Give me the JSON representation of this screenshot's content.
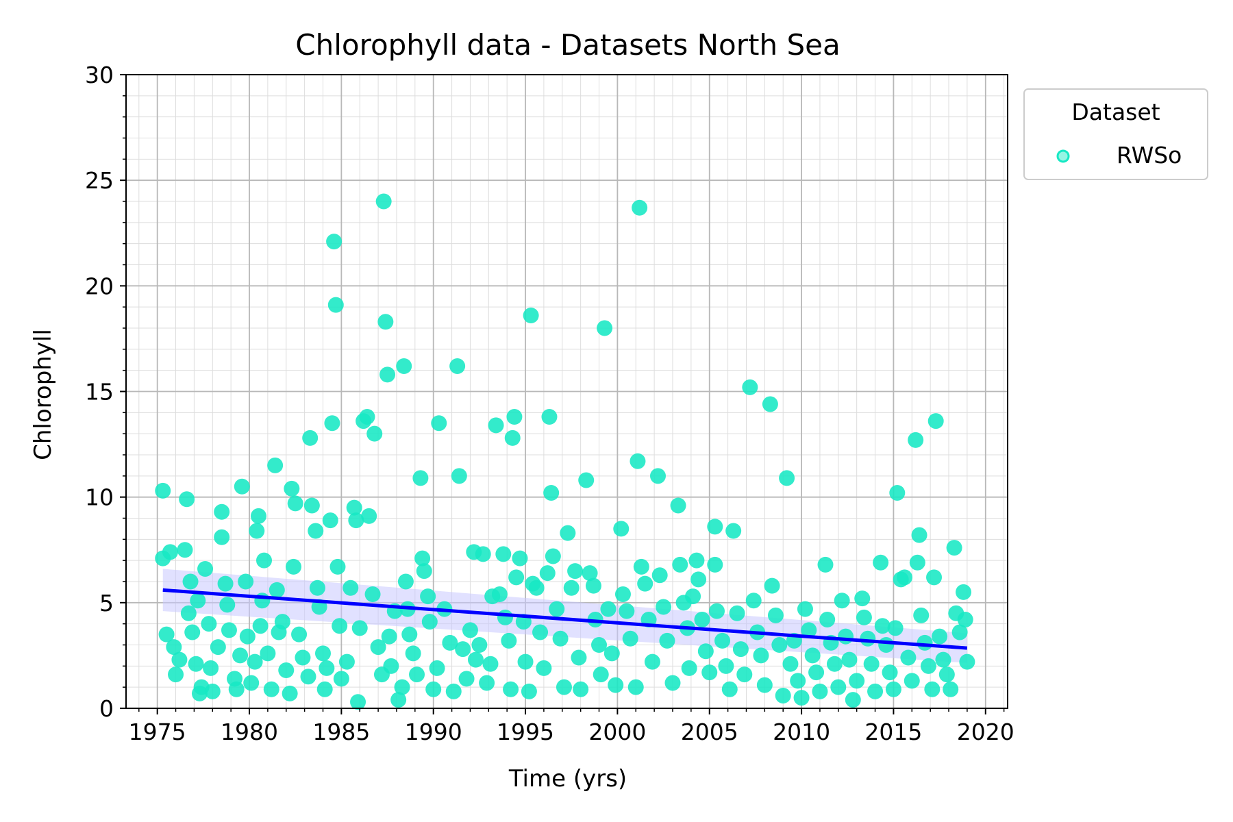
{
  "chart_data": {
    "type": "scatter",
    "title": "Chlorophyll data - Datasets North Sea",
    "xlabel": "Time (yrs)",
    "ylabel": "Chlorophyll",
    "xlim": [
      1973.3,
      2021.2
    ],
    "ylim": [
      0,
      30
    ],
    "x_ticks": [
      1975,
      1980,
      1985,
      1990,
      1995,
      2000,
      2005,
      2010,
      2015,
      2020
    ],
    "y_ticks": [
      0,
      5,
      10,
      15,
      20,
      25,
      30
    ],
    "grid": true,
    "legend": {
      "title": "Dataset",
      "placement": "outside top-right",
      "entries": [
        "RWSo"
      ]
    },
    "colors": {
      "points": "#17e8c4",
      "trend": "#0000ff",
      "band": "#c8c8ff"
    },
    "trend_line": {
      "x": [
        1975.3,
        2019.0
      ],
      "y": [
        5.6,
        2.85
      ]
    },
    "trend_band": {
      "x": [
        1975.3,
        2019.0
      ],
      "upper": [
        6.6,
        3.55
      ],
      "lower": [
        4.6,
        2.15
      ]
    },
    "series": [
      {
        "name": "RWSo",
        "points": [
          [
            1975.3,
            10.3
          ],
          [
            1975.3,
            7.1
          ],
          [
            1975.5,
            3.5
          ],
          [
            1975.7,
            7.4
          ],
          [
            1975.9,
            2.9
          ],
          [
            1976.0,
            1.6
          ],
          [
            1976.2,
            2.3
          ],
          [
            1976.5,
            7.5
          ],
          [
            1976.6,
            9.9
          ],
          [
            1976.7,
            4.5
          ],
          [
            1976.8,
            6.0
          ],
          [
            1976.9,
            3.6
          ],
          [
            1977.1,
            2.1
          ],
          [
            1977.2,
            5.1
          ],
          [
            1977.3,
            0.7
          ],
          [
            1977.4,
            1.0
          ],
          [
            1977.6,
            6.6
          ],
          [
            1977.8,
            4.0
          ],
          [
            1977.9,
            1.9
          ],
          [
            1978.0,
            0.8
          ],
          [
            1978.3,
            2.9
          ],
          [
            1978.5,
            9.3
          ],
          [
            1978.5,
            8.1
          ],
          [
            1978.7,
            5.9
          ],
          [
            1978.8,
            4.9
          ],
          [
            1978.9,
            3.7
          ],
          [
            1979.2,
            1.4
          ],
          [
            1979.3,
            0.9
          ],
          [
            1979.5,
            2.5
          ],
          [
            1979.6,
            10.5
          ],
          [
            1979.8,
            6.0
          ],
          [
            1979.9,
            3.4
          ],
          [
            1980.1,
            1.2
          ],
          [
            1980.3,
            2.2
          ],
          [
            1980.4,
            8.4
          ],
          [
            1980.5,
            9.1
          ],
          [
            1980.6,
            3.9
          ],
          [
            1980.7,
            5.1
          ],
          [
            1980.8,
            7.0
          ],
          [
            1981.0,
            2.6
          ],
          [
            1981.2,
            0.9
          ],
          [
            1981.4,
            11.5
          ],
          [
            1981.5,
            5.6
          ],
          [
            1981.6,
            3.6
          ],
          [
            1981.8,
            4.1
          ],
          [
            1982.0,
            1.8
          ],
          [
            1982.2,
            0.7
          ],
          [
            1982.3,
            10.4
          ],
          [
            1982.4,
            6.7
          ],
          [
            1982.5,
            9.7
          ],
          [
            1982.7,
            3.5
          ],
          [
            1982.9,
            2.4
          ],
          [
            1983.2,
            1.5
          ],
          [
            1983.3,
            12.8
          ],
          [
            1983.4,
            9.6
          ],
          [
            1983.6,
            8.4
          ],
          [
            1983.7,
            5.7
          ],
          [
            1983.8,
            4.8
          ],
          [
            1984.0,
            2.6
          ],
          [
            1984.1,
            0.9
          ],
          [
            1984.2,
            1.9
          ],
          [
            1984.4,
            8.9
          ],
          [
            1984.5,
            13.5
          ],
          [
            1984.6,
            22.1
          ],
          [
            1984.7,
            19.1
          ],
          [
            1984.8,
            6.7
          ],
          [
            1984.9,
            3.9
          ],
          [
            1985.0,
            1.4
          ],
          [
            1985.3,
            2.2
          ],
          [
            1985.5,
            5.7
          ],
          [
            1985.7,
            9.5
          ],
          [
            1985.8,
            8.9
          ],
          [
            1985.9,
            0.3
          ],
          [
            1986.0,
            3.8
          ],
          [
            1986.2,
            13.6
          ],
          [
            1986.4,
            13.8
          ],
          [
            1986.5,
            9.1
          ],
          [
            1986.7,
            5.4
          ],
          [
            1986.8,
            13.0
          ],
          [
            1987.0,
            2.9
          ],
          [
            1987.2,
            1.6
          ],
          [
            1987.3,
            24.0
          ],
          [
            1987.4,
            18.3
          ],
          [
            1987.5,
            15.8
          ],
          [
            1987.6,
            3.4
          ],
          [
            1987.7,
            2.0
          ],
          [
            1987.9,
            4.6
          ],
          [
            1988.1,
            0.4
          ],
          [
            1988.3,
            1.0
          ],
          [
            1988.4,
            16.2
          ],
          [
            1988.5,
            6.0
          ],
          [
            1988.6,
            4.7
          ],
          [
            1988.7,
            3.5
          ],
          [
            1988.9,
            2.6
          ],
          [
            1989.1,
            1.6
          ],
          [
            1989.3,
            10.9
          ],
          [
            1989.4,
            7.1
          ],
          [
            1989.5,
            6.5
          ],
          [
            1989.7,
            5.3
          ],
          [
            1989.8,
            4.1
          ],
          [
            1990.0,
            0.9
          ],
          [
            1990.2,
            1.9
          ],
          [
            1990.3,
            13.5
          ],
          [
            1990.6,
            4.7
          ],
          [
            1990.9,
            3.1
          ],
          [
            1991.1,
            0.8
          ],
          [
            1991.3,
            16.2
          ],
          [
            1991.4,
            11.0
          ],
          [
            1991.6,
            2.8
          ],
          [
            1991.8,
            1.4
          ],
          [
            1992.0,
            3.7
          ],
          [
            1992.2,
            7.4
          ],
          [
            1992.3,
            2.3
          ],
          [
            1992.5,
            3.0
          ],
          [
            1992.7,
            7.3
          ],
          [
            1992.9,
            1.2
          ],
          [
            1993.1,
            2.1
          ],
          [
            1993.2,
            5.3
          ],
          [
            1993.4,
            13.4
          ],
          [
            1993.6,
            5.4
          ],
          [
            1993.8,
            7.3
          ],
          [
            1993.9,
            4.3
          ],
          [
            1994.1,
            3.2
          ],
          [
            1994.2,
            0.9
          ],
          [
            1994.3,
            12.8
          ],
          [
            1994.4,
            13.8
          ],
          [
            1994.5,
            6.2
          ],
          [
            1994.7,
            7.1
          ],
          [
            1994.9,
            4.1
          ],
          [
            1995.0,
            2.2
          ],
          [
            1995.2,
            0.8
          ],
          [
            1995.3,
            18.6
          ],
          [
            1995.4,
            5.9
          ],
          [
            1995.6,
            5.7
          ],
          [
            1995.8,
            3.6
          ],
          [
            1996.0,
            1.9
          ],
          [
            1996.2,
            6.4
          ],
          [
            1996.3,
            13.8
          ],
          [
            1996.4,
            10.2
          ],
          [
            1996.5,
            7.2
          ],
          [
            1996.7,
            4.7
          ],
          [
            1996.9,
            3.3
          ],
          [
            1997.1,
            1.0
          ],
          [
            1997.3,
            8.3
          ],
          [
            1997.5,
            5.7
          ],
          [
            1997.7,
            6.5
          ],
          [
            1997.9,
            2.4
          ],
          [
            1998.0,
            0.9
          ],
          [
            1998.3,
            10.8
          ],
          [
            1998.5,
            6.4
          ],
          [
            1998.7,
            5.8
          ],
          [
            1998.8,
            4.2
          ],
          [
            1999.0,
            3.0
          ],
          [
            1999.1,
            1.6
          ],
          [
            1999.3,
            18.0
          ],
          [
            1999.5,
            4.7
          ],
          [
            1999.7,
            2.6
          ],
          [
            1999.9,
            1.1
          ],
          [
            2000.2,
            8.5
          ],
          [
            2000.3,
            5.4
          ],
          [
            2000.5,
            4.6
          ],
          [
            2000.7,
            3.3
          ],
          [
            2001.0,
            1.0
          ],
          [
            2001.2,
            23.7
          ],
          [
            2001.1,
            11.7
          ],
          [
            2001.3,
            6.7
          ],
          [
            2001.5,
            5.9
          ],
          [
            2001.7,
            4.2
          ],
          [
            2001.9,
            2.2
          ],
          [
            2002.2,
            11.0
          ],
          [
            2002.3,
            6.3
          ],
          [
            2002.5,
            4.8
          ],
          [
            2002.7,
            3.2
          ],
          [
            2003.0,
            1.2
          ],
          [
            2003.3,
            9.6
          ],
          [
            2003.4,
            6.8
          ],
          [
            2003.6,
            5.0
          ],
          [
            2003.8,
            3.8
          ],
          [
            2003.9,
            1.9
          ],
          [
            2004.1,
            5.3
          ],
          [
            2004.3,
            7.0
          ],
          [
            2004.4,
            6.1
          ],
          [
            2004.6,
            4.2
          ],
          [
            2004.8,
            2.7
          ],
          [
            2005.0,
            1.7
          ],
          [
            2005.3,
            8.6
          ],
          [
            2005.3,
            6.8
          ],
          [
            2005.4,
            4.6
          ],
          [
            2005.7,
            3.2
          ],
          [
            2005.9,
            2.0
          ],
          [
            2006.1,
            0.9
          ],
          [
            2006.3,
            8.4
          ],
          [
            2006.5,
            4.5
          ],
          [
            2006.7,
            2.8
          ],
          [
            2006.9,
            1.6
          ],
          [
            2007.2,
            15.2
          ],
          [
            2007.4,
            5.1
          ],
          [
            2007.6,
            3.6
          ],
          [
            2007.8,
            2.5
          ],
          [
            2008.0,
            1.1
          ],
          [
            2008.3,
            14.4
          ],
          [
            2008.4,
            5.8
          ],
          [
            2008.6,
            4.4
          ],
          [
            2008.8,
            3.0
          ],
          [
            2009.0,
            0.6
          ],
          [
            2009.2,
            10.9
          ],
          [
            2009.4,
            2.1
          ],
          [
            2009.6,
            3.2
          ],
          [
            2009.8,
            1.3
          ],
          [
            2010.0,
            0.5
          ],
          [
            2010.2,
            4.7
          ],
          [
            2010.4,
            3.7
          ],
          [
            2010.6,
            2.5
          ],
          [
            2010.8,
            1.7
          ],
          [
            2011.0,
            0.8
          ],
          [
            2011.3,
            6.8
          ],
          [
            2011.4,
            4.2
          ],
          [
            2011.6,
            3.1
          ],
          [
            2011.8,
            2.1
          ],
          [
            2012.0,
            1.0
          ],
          [
            2012.2,
            5.1
          ],
          [
            2012.4,
            3.4
          ],
          [
            2012.6,
            2.3
          ],
          [
            2012.8,
            0.4
          ],
          [
            2013.0,
            1.3
          ],
          [
            2013.3,
            5.2
          ],
          [
            2013.4,
            4.3
          ],
          [
            2013.6,
            3.3
          ],
          [
            2013.8,
            2.1
          ],
          [
            2014.0,
            0.8
          ],
          [
            2014.3,
            6.9
          ],
          [
            2014.4,
            3.9
          ],
          [
            2014.6,
            3.0
          ],
          [
            2014.8,
            1.7
          ],
          [
            2015.0,
            0.9
          ],
          [
            2015.1,
            3.8
          ],
          [
            2015.2,
            10.2
          ],
          [
            2015.4,
            6.1
          ],
          [
            2015.6,
            6.2
          ],
          [
            2015.8,
            2.4
          ],
          [
            2016.0,
            1.3
          ],
          [
            2016.2,
            12.7
          ],
          [
            2016.3,
            6.9
          ],
          [
            2016.4,
            8.2
          ],
          [
            2016.5,
            4.4
          ],
          [
            2016.7,
            3.1
          ],
          [
            2016.9,
            2.0
          ],
          [
            2017.1,
            0.9
          ],
          [
            2017.3,
            13.6
          ],
          [
            2017.2,
            6.2
          ],
          [
            2017.5,
            3.4
          ],
          [
            2017.7,
            2.3
          ],
          [
            2017.9,
            1.6
          ],
          [
            2018.1,
            0.9
          ],
          [
            2018.3,
            7.6
          ],
          [
            2018.4,
            4.5
          ],
          [
            2018.6,
            3.6
          ],
          [
            2018.8,
            5.5
          ],
          [
            2018.9,
            4.2
          ],
          [
            2019.0,
            2.2
          ]
        ]
      }
    ]
  }
}
